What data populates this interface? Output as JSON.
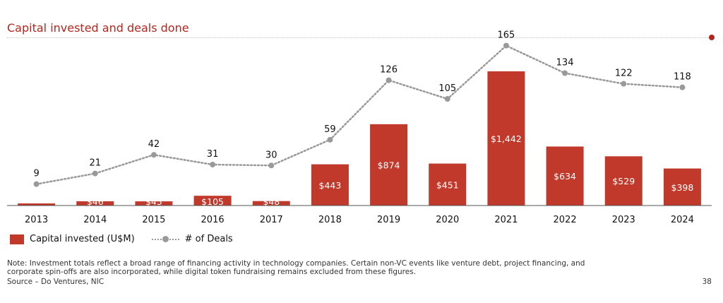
{
  "title": "Capital invested and deals done",
  "legend": {
    "bars": "Capital invested (U$M)",
    "line": "# of Deals"
  },
  "note": "Note: Investment totals reflect a broad range of financing activity in technology companies. Certain non-VC events like venture debt, project financing, and corporate spin-offs are also incorporated, while digital token fundraising remains excluded from these figures.",
  "source": "Source – Do Ventures, NIC",
  "page_number": "38",
  "colors": {
    "accent": "#b3261e",
    "bar": "#c0392b",
    "line": "#999999"
  },
  "chart_data": {
    "type": "bar",
    "title": "Capital invested and deals done",
    "categories": [
      "2013",
      "2014",
      "2015",
      "2016",
      "2017",
      "2018",
      "2019",
      "2020",
      "2021",
      "2022",
      "2023",
      "2024"
    ],
    "series": [
      {
        "name": "Capital invested (U$M)",
        "type": "bar",
        "values": [
          6,
          46,
          45,
          105,
          48,
          443,
          874,
          451,
          1442,
          634,
          529,
          398
        ],
        "labels": [
          "",
          "$46",
          "$45",
          "$105",
          "$48",
          "$443",
          "$874",
          "$451",
          "$1,442",
          "$634",
          "$529",
          "$398"
        ]
      },
      {
        "name": "# of Deals",
        "type": "line",
        "values": [
          9,
          21,
          42,
          31,
          30,
          59,
          126,
          105,
          165,
          134,
          122,
          118
        ],
        "labels": [
          "9",
          "21",
          "42",
          "31",
          "30",
          "59",
          "126",
          "105",
          "165",
          "134",
          "122",
          "118"
        ]
      }
    ],
    "xlabel": "",
    "ylabel": "",
    "ylim_bars": [
      0,
      1600
    ],
    "ylim_line": [
      0,
      180
    ]
  }
}
